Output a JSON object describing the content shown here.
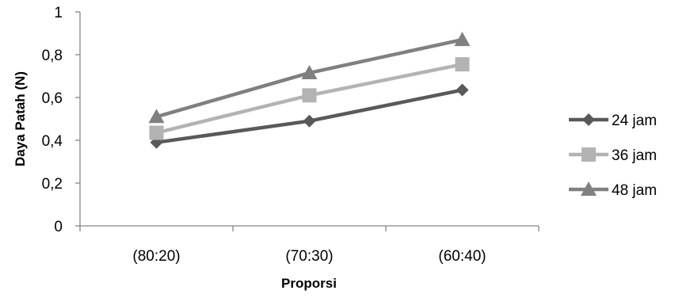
{
  "chart_data": {
    "type": "line",
    "title": "",
    "xlabel": "Proporsi",
    "ylabel": "Daya Patah (N)",
    "categories": [
      "(80:20)",
      "(70:30)",
      "(60:40)"
    ],
    "ylim": [
      0,
      1
    ],
    "yticks": [
      "0",
      "0,2",
      "0,4",
      "0,6",
      "0,8",
      "1"
    ],
    "ytick_values": [
      0,
      0.2,
      0.4,
      0.6,
      0.8,
      1
    ],
    "grid": false,
    "legend_position": "right",
    "series": [
      {
        "name": "24 jam",
        "values": [
          0.39,
          0.49,
          0.635
        ],
        "color": "#595959",
        "marker": "diamond"
      },
      {
        "name": "36 jam",
        "values": [
          0.435,
          0.61,
          0.755
        ],
        "color": "#b3b3b3",
        "marker": "square"
      },
      {
        "name": "48 jam",
        "values": [
          0.51,
          0.715,
          0.87
        ],
        "color": "#808080",
        "marker": "triangle"
      }
    ]
  }
}
